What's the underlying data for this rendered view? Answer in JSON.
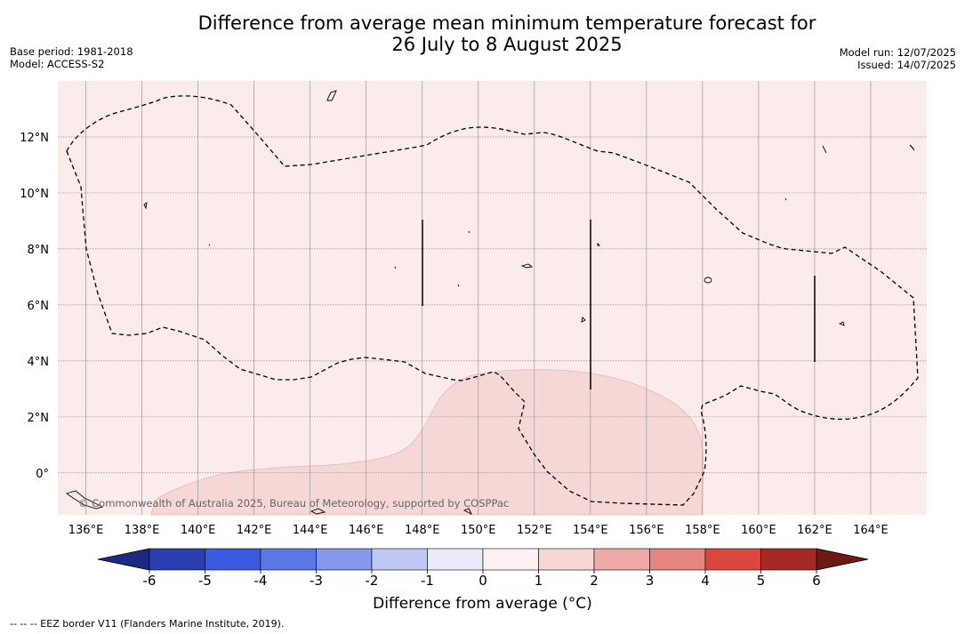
{
  "title_line1": "Difference from average mean minimum temperature forecast for",
  "title_line2": "26 July to 8 August 2025",
  "meta_left": [
    "Base period: 1981-2018",
    "Model: ACCESS-S2"
  ],
  "meta_right": [
    "Model run: 12/07/2025",
    "Issued: 14/07/2025"
  ],
  "map": {
    "lon_range": [
      135,
      166
    ],
    "lat_range": [
      -1.5,
      14
    ],
    "lon_ticks": [
      "136°E",
      "138°E",
      "140°E",
      "142°E",
      "144°E",
      "146°E",
      "148°E",
      "150°E",
      "152°E",
      "154°E",
      "156°E",
      "158°E",
      "160°E",
      "162°E",
      "164°E"
    ],
    "lon_tick_values": [
      136,
      138,
      140,
      142,
      144,
      146,
      148,
      150,
      152,
      154,
      156,
      158,
      160,
      162,
      164
    ],
    "lat_ticks": [
      "12°N",
      "10°N",
      "8°N",
      "6°N",
      "4°N",
      "2°N",
      "0°"
    ],
    "lat_tick_values": [
      12,
      10,
      8,
      6,
      4,
      2,
      0
    ],
    "background_category": "0 to 1",
    "background_color": "#fbebea",
    "warm_region_category": "1 to 2",
    "warm_region_color": "#f5d7d5",
    "copyright": "© Commonwealth of Australia 2025, Bureau of Meteorology, supported by COSPPac"
  },
  "colorbar": {
    "labels": [
      "-6",
      "-5",
      "-4",
      "-3",
      "-2",
      "-1",
      "0",
      "1",
      "2",
      "3",
      "4",
      "5",
      "6"
    ],
    "colors": [
      "#2a3eb1",
      "#3a5ae0",
      "#5b79e6",
      "#8598ec",
      "#bfc8f4",
      "#e8ebfa",
      "#fdf0ef",
      "#f5d7d5",
      "#eeaaa6",
      "#e6847e",
      "#d9473f",
      "#a52a26"
    ],
    "low_extend_color": "#1b2a80",
    "high_extend_color": "#6d1a17",
    "title": "Difference from average (°C)"
  },
  "footnote": "--  --  -- EEZ border V11 (Flanders Marine Institute, 2019)."
}
